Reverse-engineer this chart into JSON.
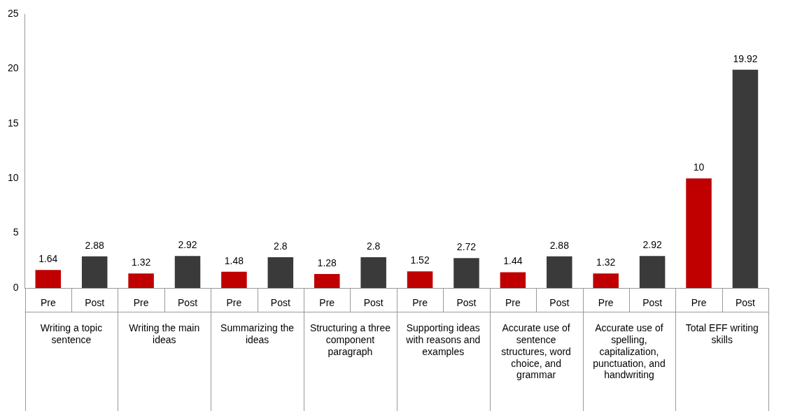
{
  "chart_data": {
    "type": "bar",
    "categories": [
      "Writing a topic sentence",
      "Writing the main ideas",
      "Summarizing the ideas",
      "Structuring a three component paragraph",
      "Supporting ideas with reasons and examples",
      "Accurate use of sentence structures, word choice, and grammar",
      "Accurate use of spelling, capitalization, punctuation, and handwriting",
      "Total EFF writing skills"
    ],
    "series": [
      {
        "name": "Pre",
        "color": "#c00000",
        "values": [
          1.64,
          1.32,
          1.48,
          1.28,
          1.52,
          1.44,
          1.32,
          10
        ]
      },
      {
        "name": "Post",
        "color": "#3a3a3a",
        "values": [
          2.88,
          2.92,
          2.8,
          2.8,
          2.72,
          2.88,
          2.92,
          19.92
        ]
      }
    ],
    "ylim": [
      0,
      25
    ],
    "yticks": [
      0,
      5,
      10,
      15,
      20,
      25
    ],
    "grid": false,
    "legend": false,
    "data_labels": true
  }
}
